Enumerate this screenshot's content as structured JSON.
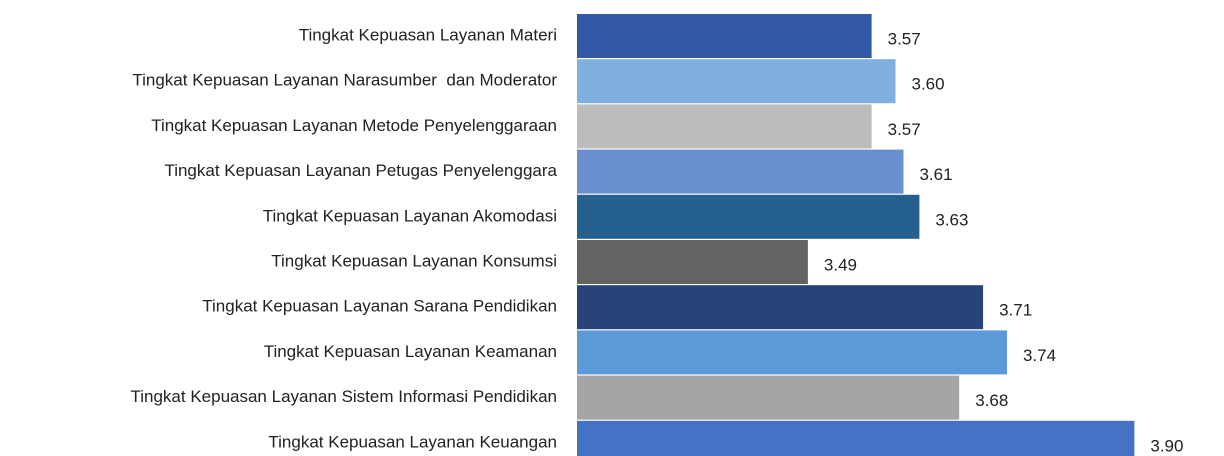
{
  "chart_data": {
    "type": "hbar",
    "categories": [
      "Tingkat Kepuasan Layanan Materi",
      "Tingkat Kepuasan Layanan Narasumber  dan Moderator",
      "Tingkat Kepuasan Layanan Metode Penyelenggaraan",
      "Tingkat Kepuasan Layanan Petugas Penyelenggara",
      "Tingkat Kepuasan Layanan Akomodasi",
      "Tingkat Kepuasan Layanan Konsumsi",
      "Tingkat Kepuasan Layanan Sarana Pendidikan",
      "Tingkat Kepuasan Layanan Keamanan",
      "Tingkat Kepuasan Layanan Sistem Informasi Pendidikan",
      "Tingkat Kepuasan Layanan Keuangan"
    ],
    "values": [
      3.57,
      3.6,
      3.57,
      3.61,
      3.63,
      3.49,
      3.71,
      3.74,
      3.68,
      3.9
    ],
    "value_labels": [
      "3.57",
      "3.60",
      "3.57",
      "3.61",
      "3.63",
      "3.49",
      "3.71",
      "3.74",
      "3.68",
      "3.90"
    ],
    "colors": [
      "#3359a6",
      "#7fb0e0",
      "#bcbcbc",
      "#6a8fd0",
      "#25608f",
      "#646464",
      "#26437a",
      "#5b9ad6",
      "#a5a5a5",
      "#4472c4"
    ],
    "xlim": [
      3.2,
      4.0
    ]
  }
}
